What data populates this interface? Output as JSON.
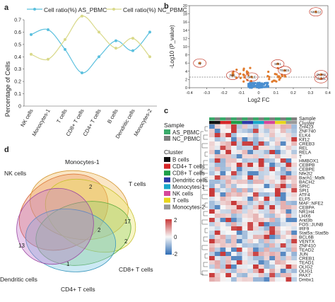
{
  "panels": {
    "a": "a",
    "b": "b",
    "c": "c",
    "d": "d"
  },
  "panel_a": {
    "ylabel": "Percentage of Cells",
    "legend": [
      "Cell ratio(%) AS_PBMC",
      "Cell ratio(%) NC_PBMC"
    ],
    "series_colors": [
      "#5bc0de",
      "#d9d98a"
    ],
    "categories": [
      "NK cells",
      "Monocytes-1",
      "T cells",
      "CD8+ T cells",
      "CD4+ T cells",
      "B cells",
      "Dendritic cells",
      "Monocytes-2"
    ],
    "yticks": [
      "0",
      "0.1",
      "0.2",
      "0.3",
      "0.4",
      "0.5",
      "0.6",
      "0.7"
    ],
    "ylim": [
      0,
      0.7
    ]
  },
  "chart_data": [
    {
      "type": "line",
      "ylabel": "Percentage of Cells",
      "categories": [
        "NK cells",
        "Monocytes-1",
        "T cells",
        "CD8+ T cells",
        "CD4+ T cells",
        "B cells",
        "Dendritic cells",
        "Monocytes-2"
      ],
      "series": [
        {
          "name": "Cell ratio(%) AS_PBMC",
          "values": [
            0.58,
            0.62,
            0.46,
            0.27,
            0.4,
            0.53,
            0.45,
            0.6
          ]
        },
        {
          "name": "Cell ratio(%) NC_PBMC",
          "values": [
            0.42,
            0.38,
            0.54,
            0.73,
            0.6,
            0.47,
            0.55,
            0.4
          ]
        }
      ],
      "ylim": [
        0,
        0.7
      ]
    },
    {
      "type": "scatter",
      "xlabel": "Log2 FC",
      "ylabel": "-Log10 (P_value)",
      "xlim": [
        -0.4,
        0.4
      ],
      "ylim": [
        0,
        20
      ],
      "xticks": [
        "-0.4",
        "-0.3",
        "-0.2",
        "-0.1",
        "0",
        "0.1",
        "0.2",
        "0.3",
        "0.4"
      ],
      "yticks": [
        "0",
        "2",
        "4",
        "6",
        "8",
        "10",
        "12",
        "14",
        "16",
        "18",
        "20"
      ],
      "threshold": 1.3,
      "labeled_points": [
        {
          "label": "NKG12",
          "x": 0.33,
          "y": 18.5
        },
        {
          "label": "Ly",
          "x": -0.34,
          "y": 6.0
        },
        {
          "label": "SPI1",
          "x": 0.11,
          "y": 5.8
        },
        {
          "label": "TEAD1",
          "x": 0.15,
          "y": 4.2
        },
        {
          "label": "REL",
          "x": -0.15,
          "y": 3.0
        },
        {
          "label": "SPLC",
          "x": -0.04,
          "y": 2.6
        },
        {
          "label": "OLIG1",
          "x": 0.36,
          "y": 2.2
        },
        {
          "label": "OLIG2",
          "x": 0.36,
          "y": 3.2
        }
      ]
    },
    {
      "type": "heatmap",
      "rows": [
        "Znf423",
        "ZNF740",
        "ELK4",
        "Klf12",
        "CREB3",
        "REL",
        "RELA",
        "T",
        "HMBOX1",
        "CEBPB",
        "CEBPE",
        "Nfe2l2",
        "Bach1::Mafk",
        "BACH2",
        "SPIC",
        "SPI1",
        "ATF4",
        "ELF5",
        "MAF::NFE2",
        "CEBPA",
        "NR1H4",
        "LHX6",
        "Arid3b",
        "FOS::JUNB",
        "IRF9",
        "Stat5a::Stat5b",
        "BCL6B",
        "VENTX",
        "ZNF410",
        "TEAD2",
        "JUN",
        "CREB1",
        "TEAD1",
        "OLIG2",
        "OLIG1",
        "PAX7",
        "Dmbx1"
      ],
      "colorbar": [
        "2",
        "0",
        "-2"
      ],
      "annotation": {
        "sample_title": "Sample",
        "sample_legend": [
          {
            "label": "AS_PBMC",
            "color": "#3aaa6a"
          },
          {
            "label": "NC_PBMC",
            "color": "#7f7f7f"
          }
        ],
        "cluster_title": "Cluster",
        "cluster_legend": [
          {
            "label": "B cells",
            "color": "#111111"
          },
          {
            "label": "CD4+ T cells",
            "color": "#d62728"
          },
          {
            "label": "CD8+ T cells",
            "color": "#1f9e48"
          },
          {
            "label": "Dendritic cells",
            "color": "#2d3aa8"
          },
          {
            "label": "Monocytes-1",
            "color": "#19a7c9"
          },
          {
            "label": "NK cells",
            "color": "#d6479a"
          },
          {
            "label": "T cells",
            "color": "#e8d61c"
          },
          {
            "label": "Monocytes-2",
            "color": "#999999"
          }
        ],
        "top_labels": [
          "Sample",
          "Cluster"
        ]
      }
    }
  ],
  "panel_d": {
    "sets": [
      "NK cells",
      "Monocytes-1",
      "T cells",
      "CD8+ T cells",
      "CD4+ T cells",
      "Dendritic cells"
    ],
    "set_colors": [
      "#e8764a",
      "#f0b85a",
      "#e8e25a",
      "#8fd26a",
      "#6cc0e0",
      "#c070c8"
    ],
    "numbers": [
      "2",
      "17",
      "2",
      "2",
      "13",
      "1"
    ]
  }
}
